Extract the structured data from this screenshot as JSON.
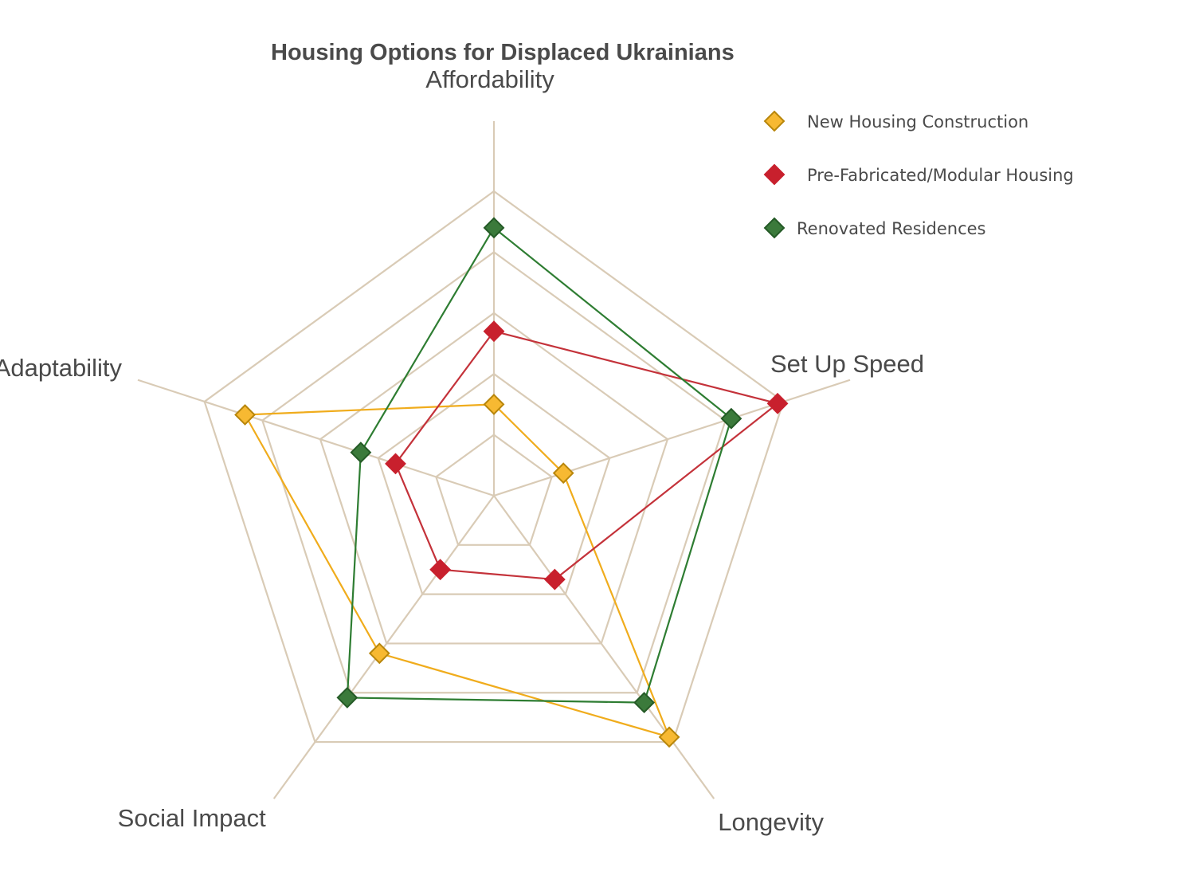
{
  "chart_data": {
    "type": "radar",
    "title": "Housing Options for Displaced Ukrainians",
    "axes": [
      "Affordability",
      "Set Up Speed",
      "Longevity",
      "Social Impact",
      "Adaptability"
    ],
    "range": [
      0,
      5
    ],
    "grid_levels": 5,
    "series": [
      {
        "name": "New Housing Construction",
        "values": [
          1.5,
          1.2,
          4.9,
          3.2,
          4.3
        ],
        "line_color": "#f0ac1c",
        "marker_fill": "#f7b932",
        "marker_stroke": "#b8860b"
      },
      {
        "name": "Pre-Fabricated/Modular Housing",
        "values": [
          2.7,
          4.9,
          1.7,
          1.5,
          1.7
        ],
        "line_color": "#c4323a",
        "marker_fill": "#c8202d",
        "marker_stroke": "#c8202d"
      },
      {
        "name": "Renovated Residences",
        "values": [
          4.4,
          4.1,
          4.2,
          4.1,
          2.3
        ],
        "line_color": "#2e7d32",
        "marker_fill": "#3b7a3b",
        "marker_stroke": "#245a26"
      }
    ],
    "legend": {
      "position": "top-right"
    }
  }
}
